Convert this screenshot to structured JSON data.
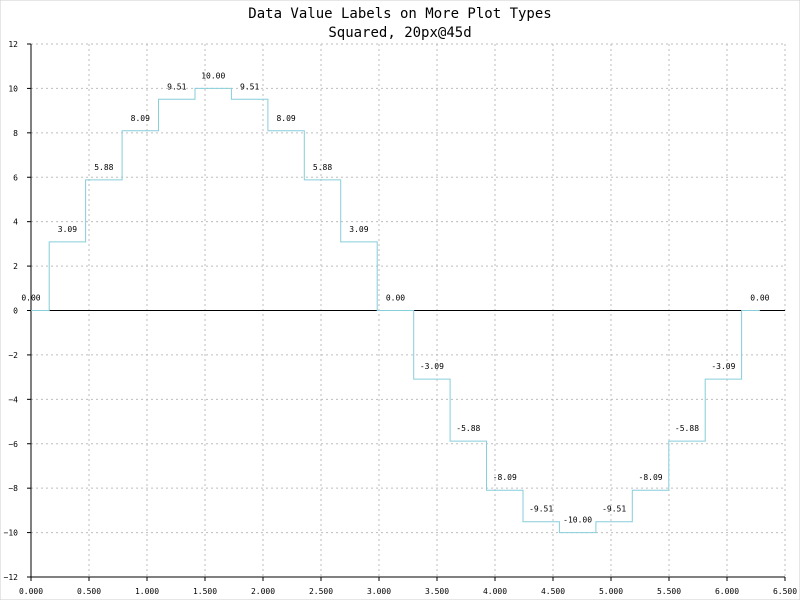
{
  "chart_data": {
    "type": "line",
    "style": "step",
    "title": "Data Value Labels on More Plot Types",
    "subtitle": "Squared, 20px@45d",
    "xlim": [
      0,
      6.5
    ],
    "ylim": [
      -12,
      12
    ],
    "x_ticks": [
      "0.000",
      "0.500",
      "1.000",
      "1.500",
      "2.000",
      "2.500",
      "3.000",
      "3.500",
      "4.000",
      "4.500",
      "5.000",
      "5.500",
      "6.000",
      "6.500"
    ],
    "y_ticks": [
      "12",
      "10",
      "8",
      "6",
      "4",
      "2",
      "0",
      "−2",
      "−4",
      "−6",
      "−8",
      "−10",
      "−12"
    ],
    "grid": true,
    "line_color": "#87cedb",
    "series": [
      {
        "x": [
          0.0,
          0.314,
          0.628,
          0.942,
          1.257,
          1.571,
          1.885,
          2.199,
          2.513,
          2.827,
          3.142,
          3.456,
          3.77,
          4.084,
          4.398,
          4.712,
          5.027,
          5.341,
          5.655,
          5.969,
          6.283
        ],
        "values": [
          0.0,
          3.09,
          5.88,
          8.09,
          9.51,
          10.0,
          9.51,
          8.09,
          5.88,
          3.09,
          0.0,
          -3.09,
          -5.88,
          -8.09,
          -9.51,
          -10.0,
          -9.51,
          -8.09,
          -5.88,
          -3.09,
          0.0
        ],
        "labels": [
          "0.00",
          "3.09",
          "5.88",
          "8.09",
          "9.51",
          "10.00",
          "9.51",
          "8.09",
          "5.88",
          "3.09",
          "0.00",
          "-3.09",
          "-5.88",
          "-8.09",
          "-9.51",
          "-10.00",
          "-9.51",
          "-8.09",
          "-5.88",
          "-3.09",
          "0.00"
        ]
      }
    ]
  }
}
